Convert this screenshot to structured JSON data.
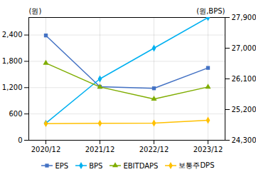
{
  "chart_data": {
    "type": "line",
    "categories": [
      "2020/12",
      "2021/12",
      "2022/12",
      "2023/12"
    ],
    "series": [
      {
        "name": "EPS",
        "color": "#4472c4",
        "marker": "square",
        "values": [
          2390,
          1220,
          1185,
          1650
        ]
      },
      {
        "name": "BPS",
        "color": "#00b0f0",
        "marker": "diamond",
        "axis": "y2",
        "values": [
          24800,
          26100,
          27000,
          27900
        ]
      },
      {
        "name": "EBITDAPS",
        "color": "#7fad00",
        "marker": "triangle",
        "values": [
          1760,
          1215,
          940,
          1215
        ]
      },
      {
        "name": "보통주DPS",
        "color": "#ffc000",
        "marker": "diamond",
        "values": [
          380,
          385,
          390,
          455
        ]
      }
    ],
    "ylim": [
      0,
      2800
    ],
    "yticks": [
      0,
      600,
      {
        "value": 1200,
        "label": "1,200"
      },
      {
        "value": 1800,
        "label": "1,800"
      },
      {
        "value": 2400,
        "label": "2,400"
      }
    ],
    "y2lim": [
      24300,
      27900
    ],
    "y2ticks": [
      {
        "value": 24300,
        "label": "24,300"
      },
      {
        "value": 25200,
        "label": "25,200"
      },
      {
        "value": 26100,
        "label": "26,100"
      },
      {
        "value": 27000,
        "label": "27,000"
      },
      {
        "value": 27900,
        "label": "27,900"
      }
    ],
    "ylabel": "(원)",
    "y2label": "(원,BPS)",
    "grid": true,
    "legend": "bottom"
  }
}
